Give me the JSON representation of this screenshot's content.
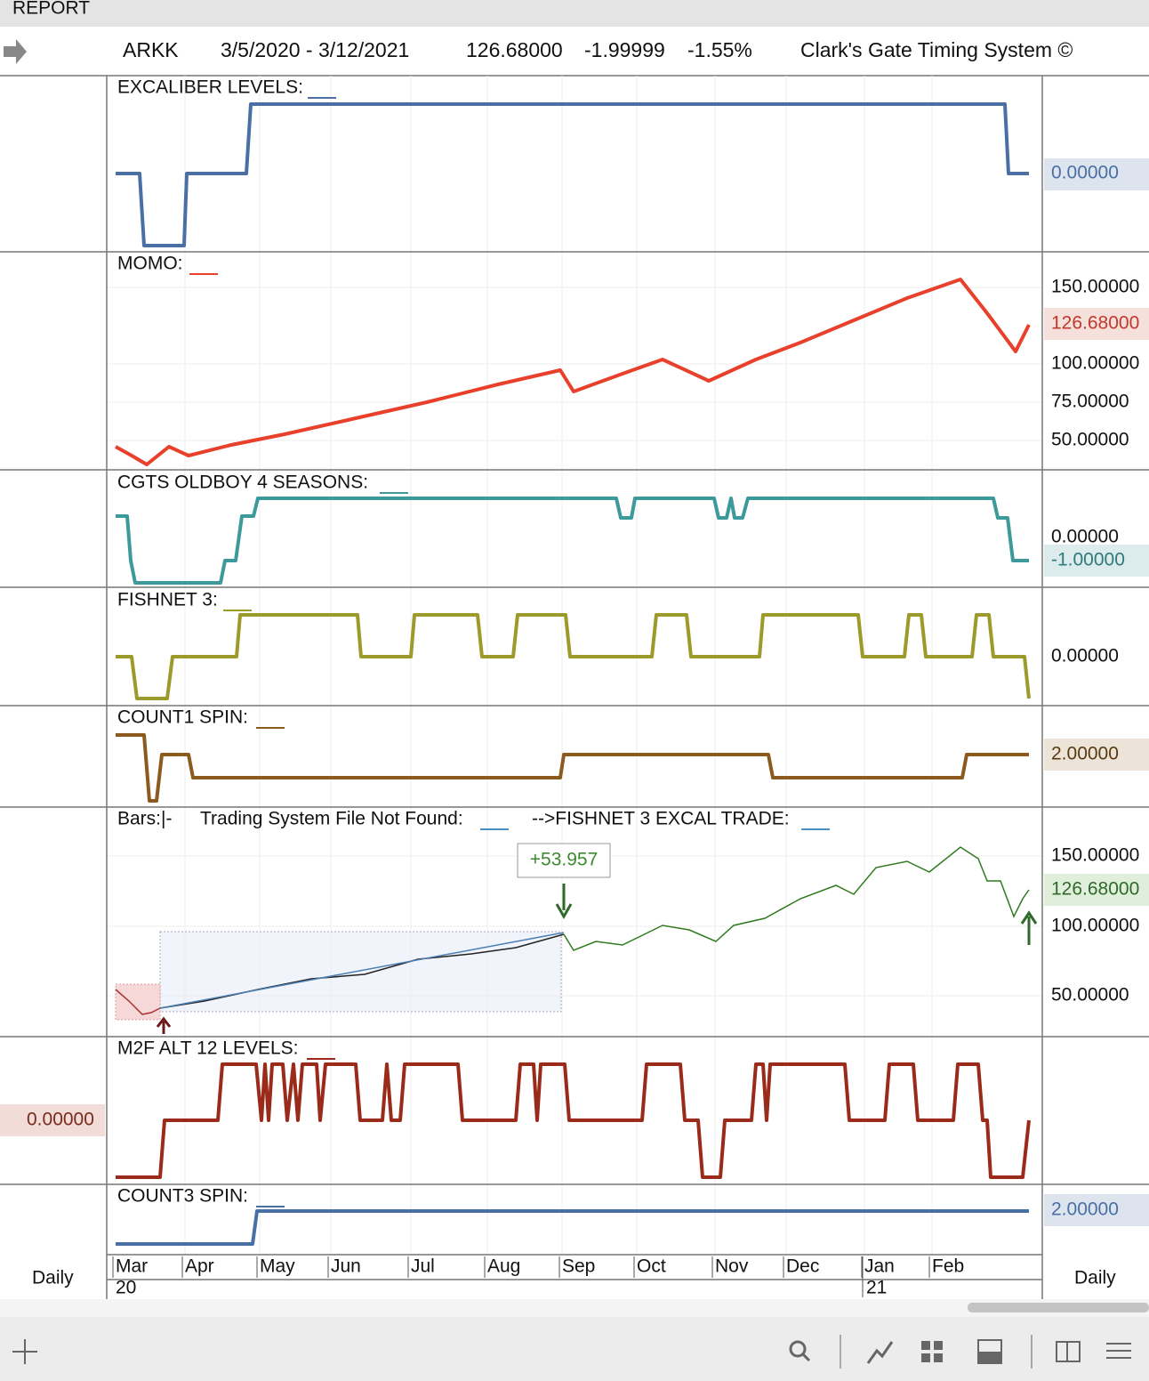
{
  "top_bar": {
    "title": "REPORT"
  },
  "header": {
    "symbol": "ARKK",
    "date_range": "3/5/2020 - 3/12/2021",
    "price": "126.68000",
    "change": "-1.99999",
    "change_pct": "-1.55%",
    "system": "Clark's Gate Timing System ©"
  },
  "panels": [
    {
      "title": "EXCALIBER LEVELS:",
      "labels": [
        "0.00000"
      ]
    },
    {
      "title": "MOMO:",
      "labels": [
        "150.00000",
        "126.68000",
        "100.00000",
        "75.00000",
        "50.00000"
      ]
    },
    {
      "title": "CGTS OLDBOY 4 SEASONS:",
      "labels": [
        "0.00000",
        "-1.00000"
      ]
    },
    {
      "title": "FISHNET 3:",
      "labels": [
        "0.00000"
      ]
    },
    {
      "title": "COUNT1 SPIN:",
      "labels": [
        "2.00000"
      ]
    },
    {
      "title": "Bars:|-",
      "title2": "Trading System File Not Found:",
      "title3": "-->FISHNET 3 EXCAL TRADE:",
      "labels": [
        "150.00000",
        "126.68000",
        "100.00000",
        "50.00000"
      ],
      "annotation": "+53.957"
    },
    {
      "title": "M2F ALT 12 LEVELS:",
      "labels": [
        "0.00000"
      ]
    },
    {
      "title": "COUNT3 SPIN:",
      "labels": [
        "2.00000"
      ]
    }
  ],
  "time_axis": {
    "months": [
      "Mar",
      "Apr",
      "May",
      "Jun",
      "Jul",
      "Aug",
      "Sep",
      "Oct",
      "Nov",
      "Dec",
      "Jan",
      "Feb"
    ],
    "years": [
      "20",
      "21"
    ],
    "left_period": "Daily",
    "right_period": "Daily"
  }
}
